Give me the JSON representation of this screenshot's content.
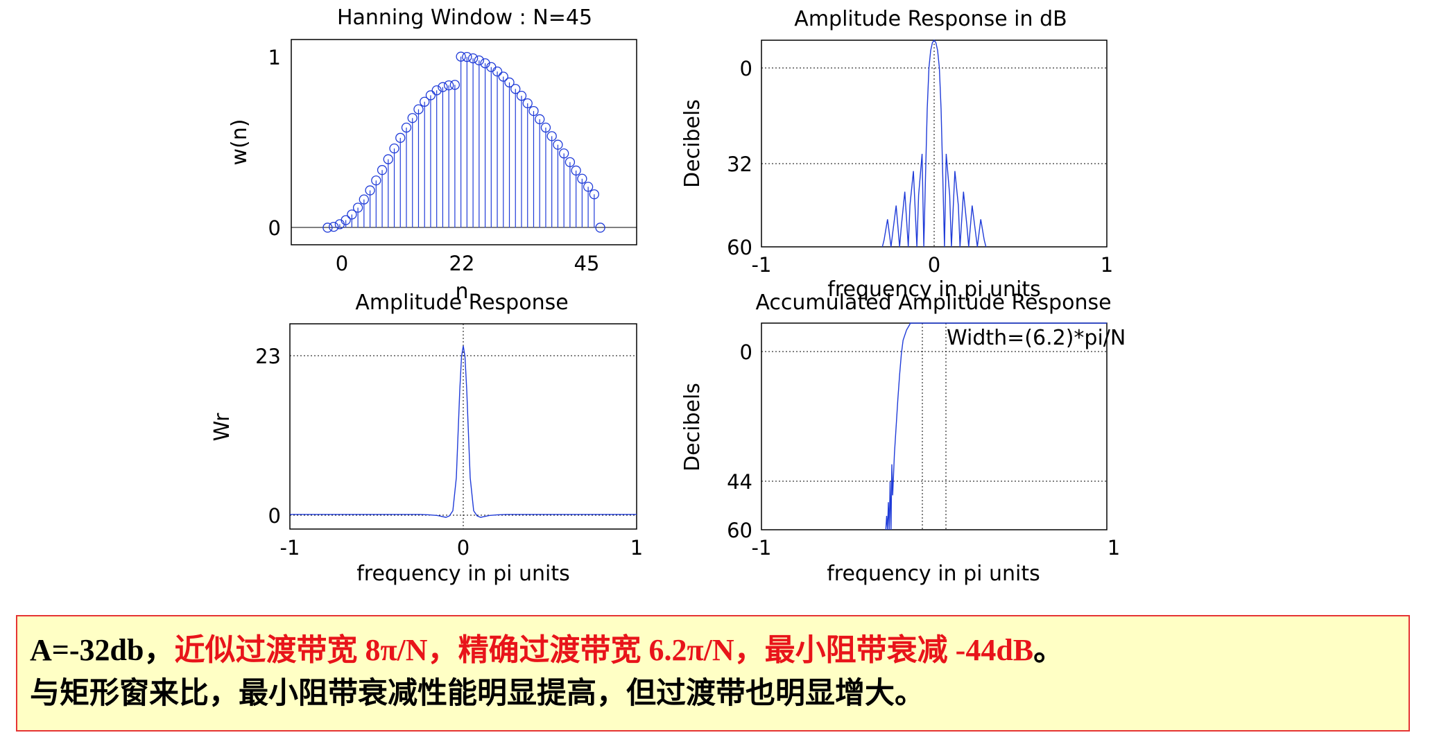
{
  "colors": {
    "series": "#1f3bd8",
    "axis": "#000000",
    "note_red": "#e8141a",
    "note_bg": "#ffffc5",
    "note_border": "#e53333"
  },
  "chart_data": [
    {
      "type": "stem",
      "title": "Hanning Window : N=45",
      "xlabel": "n",
      "ylabel": "w(n)",
      "xlim": [
        -6,
        51
      ],
      "ylim": [
        -0.1,
        1.1
      ],
      "xticks": [
        "0",
        "22",
        "45"
      ],
      "yticks": [
        "0",
        "1"
      ],
      "grid": false,
      "x": [
        0,
        1,
        2,
        3,
        4,
        5,
        6,
        7,
        8,
        9,
        10,
        11,
        12,
        13,
        14,
        15,
        16,
        17,
        18,
        19,
        20,
        21,
        22,
        23,
        24,
        25,
        26,
        27,
        28,
        29,
        30,
        31,
        32,
        33,
        34,
        35,
        36,
        37,
        38,
        39,
        40,
        41,
        42,
        43,
        44,
        45
      ],
      "values": [
        0,
        0.005,
        0.02,
        0.044,
        0.077,
        0.117,
        0.165,
        0.218,
        0.276,
        0.337,
        0.4,
        0.463,
        0.525,
        0.585,
        0.641,
        0.692,
        0.736,
        0.774,
        0.803,
        0.822,
        0.832,
        0.835,
        1.0,
        0.998,
        0.99,
        0.978,
        0.961,
        0.939,
        0.913,
        0.883,
        0.849,
        0.811,
        0.771,
        0.727,
        0.682,
        0.634,
        0.585,
        0.535,
        0.485,
        0.434,
        0.383,
        0.334,
        0.286,
        0.239,
        0.195,
        0.0
      ]
    },
    {
      "type": "line",
      "title": "Amplitude Response in dB",
      "xlabel": "frequency in pi units",
      "ylabel": "Decibels",
      "xlim": [
        -1,
        1
      ],
      "ylim": [
        60,
        0
      ],
      "xticks": [
        "-1",
        "0",
        "1"
      ],
      "yticks": [
        "0",
        "32",
        "60"
      ],
      "grid": true,
      "series": [
        {
          "x": [
            -0.3,
            -0.29,
            -0.27,
            -0.25,
            -0.24,
            -0.22,
            -0.2,
            -0.19,
            -0.17,
            -0.15,
            -0.14,
            -0.12,
            -0.1,
            -0.09,
            -0.07,
            -0.06,
            -0.05,
            -0.04,
            -0.03,
            -0.02,
            -0.01,
            0,
            0.01,
            0.02,
            0.03,
            0.04,
            0.05,
            0.06,
            0.07,
            0.09,
            0.1,
            0.12,
            0.14,
            0.15,
            0.17,
            0.19,
            0.2,
            0.22,
            0.24,
            0.25,
            0.27,
            0.29,
            0.3
          ],
          "values": [
            60,
            58,
            52,
            60,
            56,
            48,
            60,
            54,
            44,
            60,
            48,
            38,
            60,
            45,
            33,
            60,
            40,
            20,
            8,
            3,
            0.7,
            0,
            0.7,
            3,
            8,
            20,
            40,
            60,
            33,
            45,
            60,
            38,
            48,
            60,
            44,
            54,
            60,
            48,
            56,
            60,
            52,
            58,
            60
          ]
        }
      ]
    },
    {
      "type": "line",
      "title": "Amplitude Response",
      "xlabel": "frequency in pi units",
      "ylabel": "Wr",
      "xlim": [
        -1,
        1
      ],
      "ylim": [
        -2,
        26
      ],
      "xticks": [
        "-1",
        "0",
        "1"
      ],
      "yticks": [
        "0",
        "23"
      ],
      "grid": true,
      "series": [
        {
          "x": [
            -1,
            -0.25,
            -0.2,
            -0.15,
            -0.1,
            -0.08,
            -0.06,
            -0.04,
            -0.03,
            -0.02,
            -0.01,
            0,
            0.01,
            0.02,
            0.03,
            0.04,
            0.06,
            0.08,
            0.1,
            0.15,
            0.2,
            0.25,
            1
          ],
          "values": [
            0,
            0,
            -0.05,
            -0.15,
            -0.4,
            -0.2,
            0.5,
            5,
            11,
            17,
            21.5,
            23,
            21.5,
            17,
            11,
            5,
            0.5,
            -0.2,
            -0.4,
            -0.15,
            -0.05,
            0,
            0
          ]
        }
      ]
    },
    {
      "type": "line",
      "title": "Accumulated Amplitude Response",
      "xlabel": "frequency in pi units",
      "ylabel": "Decibels",
      "xlim": [
        -1,
        1
      ],
      "ylim": [
        60,
        0
      ],
      "xticks": [
        "-1",
        "",
        "1"
      ],
      "yticks": [
        "0",
        "44",
        "60"
      ],
      "grid": true,
      "annotation": "Width=(6.2)*pi/N",
      "series": [
        {
          "x": [
            -0.28,
            -0.275,
            -0.27,
            -0.265,
            -0.26,
            -0.255,
            -0.25,
            -0.245,
            -0.24,
            -0.23,
            -0.22,
            -0.21,
            -0.2,
            -0.19,
            -0.18,
            -0.16,
            -0.14,
            -0.139,
            1
          ],
          "values": [
            60,
            56,
            60,
            52,
            60,
            46,
            60,
            41,
            50,
            38,
            30,
            22,
            15,
            9,
            5,
            2,
            0.3,
            0,
            0
          ]
        }
      ]
    }
  ],
  "note": {
    "a_value": "A=-32db，",
    "approx_width": "近似过渡带宽 8π/N，",
    "exact_width": "精确过渡带宽 6.2π/N，",
    "min_atten": "最小阻带衰减 -44dB",
    "period": "。",
    "line2": "与矩形窗来比，最小阻带衰减性能明显提高，但过渡带也明显增大。"
  }
}
